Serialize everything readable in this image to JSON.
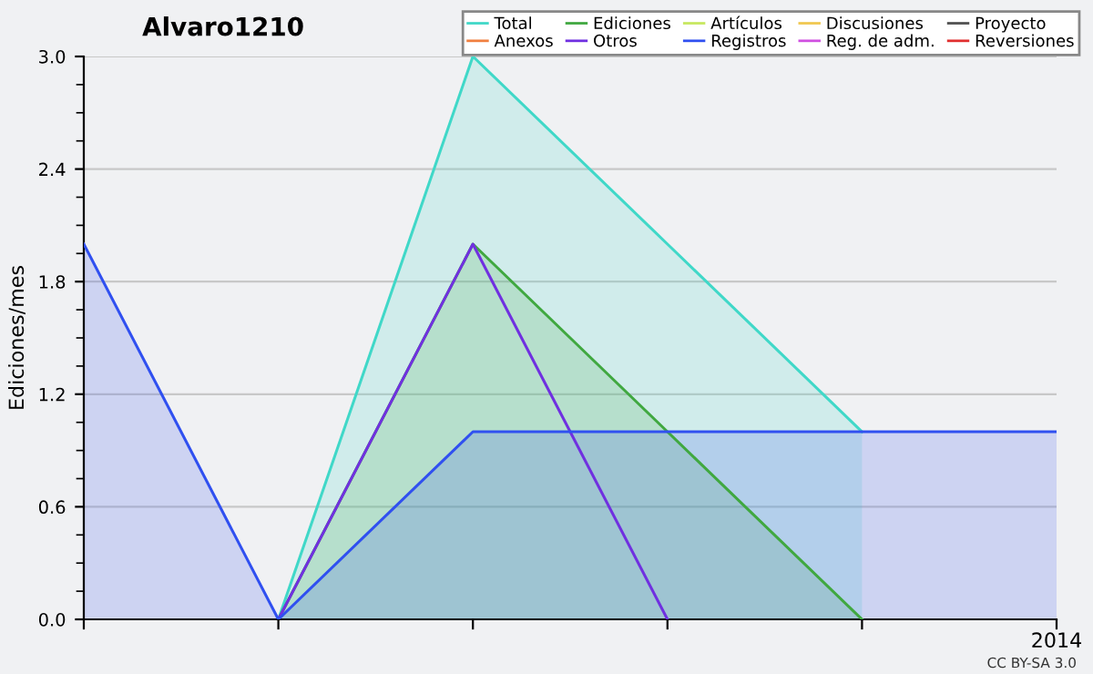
{
  "chart_data": {
    "type": "area",
    "title": "Alvaro1210",
    "ylabel": "Ediciones/mes",
    "categories": [
      null,
      null,
      null,
      null,
      null,
      "2014"
    ],
    "ylim": [
      0,
      3
    ],
    "yticks": [
      {
        "value": 0,
        "label": "0.0"
      },
      {
        "value": 0.6,
        "label": "0.6"
      },
      {
        "value": 1.2,
        "label": "1.2"
      },
      {
        "value": 1.8,
        "label": "1.8"
      },
      {
        "value": 2.4,
        "label": "2.4"
      },
      {
        "value": 3,
        "label": "3.0"
      }
    ],
    "grid": "y",
    "legend": "top right",
    "marker": "none",
    "line_style": "solid",
    "annotations": [
      "CC BY-SA 3.0"
    ],
    "series": [
      {
        "name": "Total",
        "color": "#40d8c8",
        "values": [
          null,
          0,
          3,
          2,
          1,
          null
        ]
      },
      {
        "name": "Ediciones",
        "color": "#40a840",
        "values": [
          null,
          0,
          2,
          1,
          0,
          null
        ]
      },
      {
        "name": "Artículos",
        "type": "line",
        "color": "#c8e860",
        "values": [
          null,
          null,
          null,
          null,
          null,
          null
        ]
      },
      {
        "name": "Discusiones",
        "type": "line",
        "color": "#f0c850",
        "values": [
          null,
          null,
          null,
          null,
          null,
          null
        ]
      },
      {
        "name": "Proyecto",
        "type": "line",
        "color": "#505050",
        "values": [
          null,
          null,
          null,
          null,
          null,
          null
        ]
      },
      {
        "name": "Anexos",
        "type": "line",
        "color": "#f08040",
        "values": [
          null,
          null,
          null,
          null,
          null,
          null
        ]
      },
      {
        "name": "Otros",
        "type": "line",
        "color": "#7030e0",
        "values": [
          null,
          0,
          2,
          0,
          null,
          null
        ]
      },
      {
        "name": "Registros",
        "color": "#3050f0",
        "values": [
          2,
          0,
          1,
          1,
          1,
          1
        ]
      },
      {
        "name": "Reg. de adm.",
        "type": "line",
        "color": "#d050e0",
        "values": [
          null,
          null,
          null,
          null,
          null,
          null
        ]
      },
      {
        "name": "Reversiones",
        "type": "line",
        "color": "#e03030",
        "values": [
          null,
          null,
          null,
          null,
          null,
          null
        ]
      }
    ]
  }
}
